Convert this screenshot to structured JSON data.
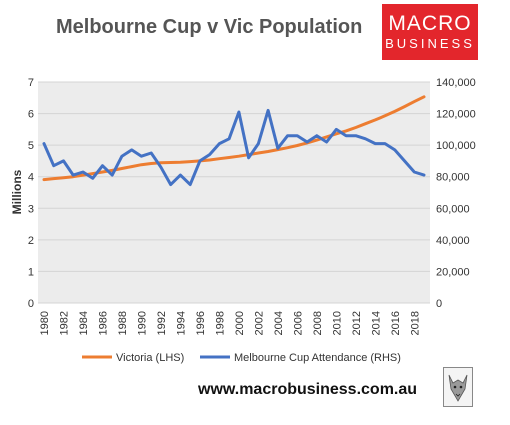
{
  "title": "Melbourne Cup v Vic Population",
  "logo": {
    "line1": "MACRO",
    "line2": "BUSINESS",
    "color": "#e3262c"
  },
  "url": "www.macrobusiness.com.au",
  "chart_data": {
    "type": "line",
    "ylabel": "Millions",
    "y_left_lim": [
      0,
      7
    ],
    "y_right_lim": [
      0,
      140000
    ],
    "y_left_ticks": [
      "0",
      "1",
      "2",
      "3",
      "4",
      "5",
      "6",
      "7"
    ],
    "y_right_ticks": [
      "0",
      "20,000",
      "40,000",
      "60,000",
      "80,000",
      "100,000",
      "120,000",
      "140,000"
    ],
    "x_ticks": [
      "1980",
      "1982",
      "1984",
      "1986",
      "1988",
      "1990",
      "1992",
      "1994",
      "1996",
      "1998",
      "2000",
      "2002",
      "2004",
      "2006",
      "2008",
      "2010",
      "2012",
      "2014",
      "2016",
      "2018"
    ],
    "x": [
      1980,
      1981,
      1982,
      1983,
      1984,
      1985,
      1986,
      1987,
      1988,
      1989,
      1990,
      1991,
      1992,
      1993,
      1994,
      1995,
      1996,
      1997,
      1998,
      1999,
      2000,
      2001,
      2002,
      2003,
      2004,
      2005,
      2006,
      2007,
      2008,
      2009,
      2010,
      2011,
      2012,
      2013,
      2014,
      2015,
      2016,
      2017,
      2018,
      2019
    ],
    "plot_background": "#ececec",
    "series": [
      {
        "name": "Victoria (LHS)",
        "axis": "left",
        "color": "#ed7d31",
        "values": [
          3.91,
          3.94,
          3.97,
          4.0,
          4.05,
          4.1,
          4.15,
          4.2,
          4.26,
          4.32,
          4.38,
          4.42,
          4.44,
          4.45,
          4.46,
          4.48,
          4.5,
          4.53,
          4.57,
          4.61,
          4.65,
          4.7,
          4.75,
          4.8,
          4.86,
          4.92,
          4.99,
          5.07,
          5.16,
          5.26,
          5.36,
          5.45,
          5.56,
          5.68,
          5.8,
          5.93,
          6.07,
          6.22,
          6.38,
          6.53
        ]
      },
      {
        "name": "Melbourne Cup Attendance (RHS)",
        "axis": "right",
        "color": "#4472c4",
        "values": [
          101000,
          87000,
          90000,
          81000,
          83000,
          79000,
          87000,
          81000,
          93000,
          97000,
          93000,
          95000,
          86000,
          75000,
          81000,
          75000,
          90000,
          94000,
          101000,
          104000,
          121000,
          92000,
          101000,
          122000,
          98000,
          106000,
          106000,
          102000,
          106000,
          102000,
          110000,
          106000,
          106000,
          104000,
          101000,
          101000,
          97000,
          90000,
          83000,
          81000
        ]
      }
    ]
  }
}
